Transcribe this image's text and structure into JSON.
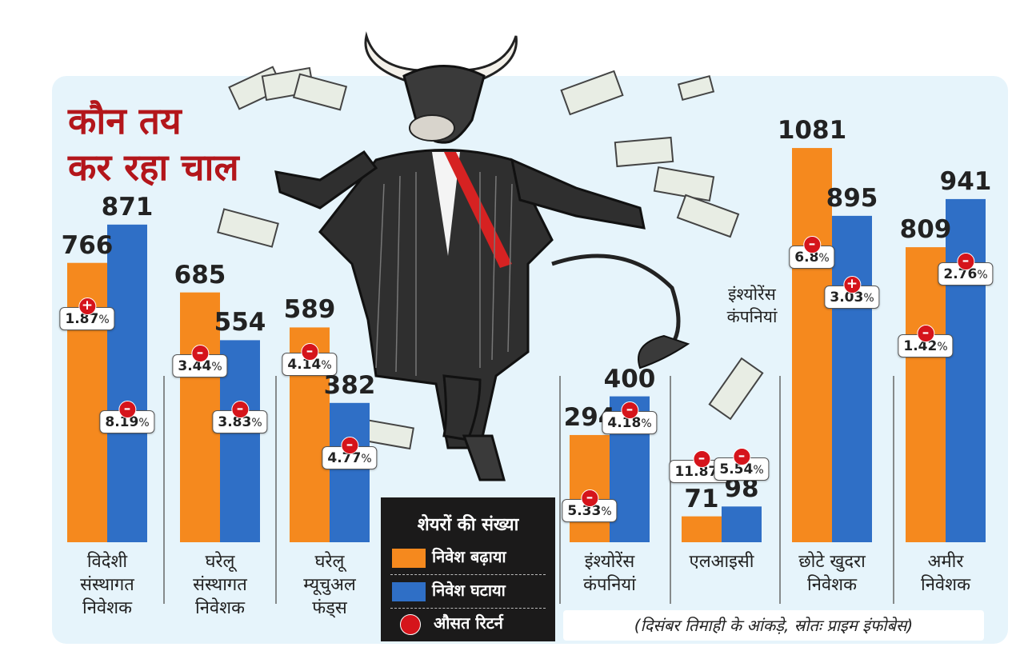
{
  "title_lines": [
    "कौन तय",
    "कर रहा चाल"
  ],
  "colors": {
    "increased": "#f5891e",
    "decreased": "#2f6fc6",
    "return_dot": "#d5141b",
    "title": "#b3161b"
  },
  "chart_data": {
    "type": "bar",
    "title": "कौन तय कर रहा चाल",
    "categories": [
      [
        "विदेशी",
        "संस्थागत",
        "निवेशक"
      ],
      [
        "घरेलू",
        "संस्थागत",
        "निवेशक"
      ],
      [
        "घरेलू",
        "म्यूचुअल",
        "फंड्स"
      ],
      [
        "इंश्योरेंस",
        "कंपनियां"
      ],
      [
        "एलआइसी"
      ],
      [
        "छोटे खुदरा",
        "निवेशक"
      ],
      [
        "अमीर",
        "निवेशक"
      ]
    ],
    "series": [
      {
        "name": "निवेश बढ़ाया",
        "values": [
          766,
          685,
          589,
          294,
          71,
          1081,
          809
        ],
        "avg_return": [
          {
            "sign": "+",
            "value": "1.87"
          },
          {
            "sign": "-",
            "value": "3.44"
          },
          {
            "sign": "-",
            "value": "4.14"
          },
          {
            "sign": "-",
            "value": "5.33"
          },
          {
            "sign": "-",
            "value": "11.87"
          },
          {
            "sign": "-",
            "value": "6.8"
          },
          {
            "sign": "-",
            "value": "1.42"
          }
        ]
      },
      {
        "name": "निवेश घटाया",
        "values": [
          871,
          554,
          382,
          400,
          98,
          895,
          941
        ],
        "avg_return": [
          {
            "sign": "-",
            "value": "8.19"
          },
          {
            "sign": "-",
            "value": "3.83"
          },
          {
            "sign": "-",
            "value": "4.77"
          },
          {
            "sign": "-",
            "value": "4.18"
          },
          {
            "sign": "-",
            "value": "5.54"
          },
          {
            "sign": "+",
            "value": "3.03"
          },
          {
            "sign": "-",
            "value": "2.76"
          }
        ]
      }
    ],
    "ylim": [
      0,
      1200
    ],
    "xlabel": "",
    "ylabel": "",
    "legend_placement": "bottom-center",
    "grid": false
  },
  "pct_symbol": "%",
  "annotation_lines": [
    "इंश्योरेंस",
    "कंपनियां"
  ],
  "legend": {
    "title": "शेयरों की संख्या",
    "increased_label": "निवेश बढ़ाया",
    "decreased_label": "निवेश घटाया",
    "return_label": "औसत रिटर्न"
  },
  "source": "(दिसंबर तिमाही के आंकड़े, स्रोतः प्राइम इंफोबेस)",
  "illustration": "bull-in-suit-with-money-icon"
}
